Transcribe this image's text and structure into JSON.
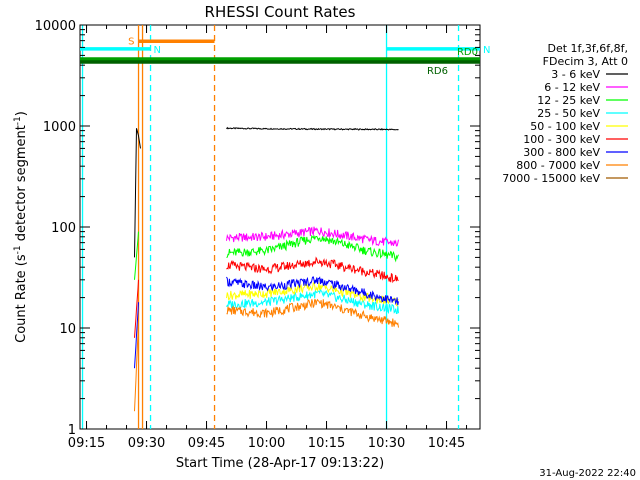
{
  "chart_data": {
    "type": "line",
    "title": "RHESSI Count Rates",
    "xlabel": "Start Time (28-Apr-17 09:13:22)",
    "ylabel_parts": [
      "Count Rate (s",
      "-1",
      " detector segment",
      "-1",
      ")"
    ],
    "yscale": "log",
    "ylim": [
      1,
      10000
    ],
    "xlim": [
      "09:13:22",
      "10:53:22"
    ],
    "x_ticks": [
      "09:15",
      "09:30",
      "09:45",
      "10:00",
      "10:15",
      "10:30",
      "10:45"
    ],
    "y_ticks": [
      "1",
      "10",
      "100",
      "1000",
      "10000"
    ],
    "grid": false,
    "legend_position": "right",
    "legend_header": [
      "Det 1f,3f,6f,8f,",
      "FDecim 3, Att 0"
    ],
    "series": [
      {
        "name": "3 - 6 keV",
        "color": "#000000",
        "segments": [
          {
            "x": [
              "09:27",
              "09:27:30",
              "09:28",
              "09:28:30"
            ],
            "y": [
              50,
              950,
              800,
              600
            ]
          },
          {
            "x": [
              "09:50",
              "10:00",
              "10:15",
              "10:30",
              "10:33"
            ],
            "y": [
              950,
              940,
              930,
              925,
              920
            ]
          }
        ]
      },
      {
        "name": "6 - 12 keV",
        "color": "#ff00ff",
        "segments": [
          {
            "x": [
              "09:50",
              "10:00",
              "10:13",
              "10:25",
              "10:33"
            ],
            "y": [
              78,
              80,
              92,
              75,
              68
            ]
          }
        ]
      },
      {
        "name": "12 - 25 keV",
        "color": "#00ff00",
        "segments": [
          {
            "x": [
              "09:27",
              "09:28"
            ],
            "y": [
              30,
              90
            ]
          },
          {
            "x": [
              "09:50",
              "10:00",
              "10:13",
              "10:25",
              "10:33"
            ],
            "y": [
              55,
              58,
              80,
              58,
              50
            ]
          }
        ]
      },
      {
        "name": "25 - 50 keV",
        "color": "#00ffff",
        "segments": [
          {
            "x": [
              "09:50",
              "10:00",
              "10:13",
              "10:25",
              "10:33"
            ],
            "y": [
              17,
              18,
              22,
              17,
              15
            ]
          }
        ]
      },
      {
        "name": "50 - 100 keV",
        "color": "#ffff00",
        "segments": [
          {
            "x": [
              "09:50",
              "10:00",
              "10:13",
              "10:25",
              "10:33"
            ],
            "y": [
              21,
              22,
              26,
              20,
              18
            ]
          }
        ]
      },
      {
        "name": "100 - 300 keV",
        "color": "#ff0000",
        "segments": [
          {
            "x": [
              "09:27",
              "09:28"
            ],
            "y": [
              8,
              30
            ]
          },
          {
            "x": [
              "09:50",
              "10:00",
              "10:13",
              "10:25",
              "10:33"
            ],
            "y": [
              42,
              38,
              46,
              36,
              30
            ]
          }
        ]
      },
      {
        "name": "300 - 800 keV",
        "color": "#0000ff",
        "segments": [
          {
            "x": [
              "09:27",
              "09:28"
            ],
            "y": [
              4,
              18
            ]
          },
          {
            "x": [
              "09:50",
              "10:00",
              "10:13",
              "10:25",
              "10:33"
            ],
            "y": [
              29,
              25,
              30,
              22,
              18
            ]
          }
        ]
      },
      {
        "name": "800 - 7000 keV",
        "color": "#ff8000",
        "segments": [
          {
            "x": [
              "09:27",
              "09:28"
            ],
            "y": [
              1.5,
              12
            ]
          },
          {
            "x": [
              "09:50",
              "10:00",
              "10:13",
              "10:25",
              "10:33"
            ],
            "y": [
              15,
              14,
              18,
              13,
              11
            ]
          }
        ]
      },
      {
        "name": "7000 - 15000 keV",
        "color": "#a05a00",
        "segments": []
      }
    ],
    "annotations": [
      {
        "label": "S",
        "color": "#ff8000",
        "x_start": "09:28",
        "x_end": "09:47",
        "y": 6900
      },
      {
        "label": "N",
        "color": "#00ffff",
        "x_start": "09:13:22",
        "x_end": "09:31",
        "y": 5800
      },
      {
        "label": "N",
        "color": "#00ffff",
        "x_start": "10:30",
        "x_end": "10:53:22",
        "y": 5800
      },
      {
        "label": "RD0",
        "color": "#00a000",
        "x_start": "09:13:22",
        "x_end": "10:53:22",
        "y": 4600
      },
      {
        "label": "RD6",
        "color": "#006000",
        "x_start": "09:13:22",
        "x_end": "10:53:22",
        "y": 4300
      }
    ],
    "vertical_lines": [
      {
        "x": "09:14",
        "color": "#00ffff",
        "style": "solid"
      },
      {
        "x": "09:28",
        "color": "#ff8000",
        "style": "solid"
      },
      {
        "x": "09:29",
        "color": "#ff8000",
        "style": "solid"
      },
      {
        "x": "09:31",
        "color": "#00ffff",
        "style": "dashed"
      },
      {
        "x": "09:47",
        "color": "#ff8000",
        "style": "dashed"
      },
      {
        "x": "10:30",
        "color": "#00ffff",
        "style": "solid"
      },
      {
        "x": "10:48",
        "color": "#00ffff",
        "style": "dashed"
      }
    ]
  },
  "footer": {
    "timestamp": "31-Aug-2022 22:40"
  }
}
